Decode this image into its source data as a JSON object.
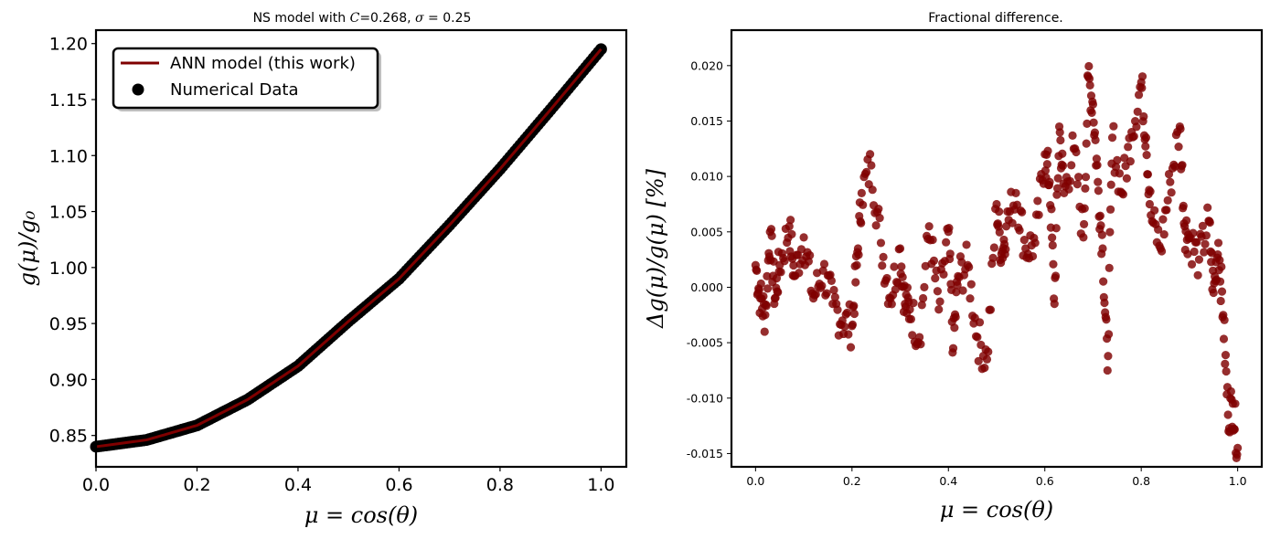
{
  "chart_data": [
    {
      "type": "line",
      "title_pre": "NS model with ",
      "title_c": "C",
      "title_mid": "=0.268, ",
      "title_sigma": "σ",
      "title_post": " = 0.25",
      "xlabel": "μ = cos(θ)",
      "ylabel": "g(μ)/g₀",
      "xlim": [
        0.0,
        1.05
      ],
      "ylim": [
        0.822,
        1.212
      ],
      "xticks": [
        "0.0",
        "0.2",
        "0.4",
        "0.6",
        "0.8",
        "1.0"
      ],
      "yticks": [
        "0.85",
        "0.90",
        "0.95",
        "1.00",
        "1.05",
        "1.10",
        "1.15",
        "1.20"
      ],
      "legend_position": "upper-left",
      "series": [
        {
          "name": "ANN model (this work)",
          "kind": "line",
          "color": "#7f0000",
          "x": [
            0.0,
            0.1,
            0.2,
            0.3,
            0.4,
            0.5,
            0.6,
            0.7,
            0.8,
            0.9,
            1.0
          ],
          "y": [
            0.84,
            0.846,
            0.859,
            0.882,
            0.912,
            0.952,
            0.99,
            1.038,
            1.088,
            1.141,
            1.195
          ]
        },
        {
          "name": "Numerical Data",
          "kind": "scatter",
          "color": "#000000",
          "x": [
            0.0,
            0.1,
            0.2,
            0.3,
            0.4,
            0.5,
            0.6,
            0.7,
            0.8,
            0.9,
            1.0
          ],
          "y": [
            0.84,
            0.846,
            0.859,
            0.882,
            0.912,
            0.952,
            0.99,
            1.038,
            1.088,
            1.141,
            1.195
          ]
        }
      ]
    },
    {
      "type": "scatter",
      "title": "Fractional difference.",
      "xlabel": "μ = cos(θ)",
      "ylabel": "Δg(μ)/g(μ)  [%]",
      "xlim": [
        -0.05,
        1.05
      ],
      "ylim": [
        -0.0162,
        0.0232
      ],
      "xticks": [
        "0.0",
        "0.2",
        "0.4",
        "0.6",
        "0.8",
        "1.0"
      ],
      "yticks": [
        "0.020",
        "0.015",
        "0.010",
        "0.005",
        "0.000",
        "-0.005",
        "-0.010",
        "-0.015"
      ],
      "series": [
        {
          "color": "#7f0000",
          "x": [
            0.0,
            0.01,
            0.02,
            0.03,
            0.04,
            0.05,
            0.07,
            0.08,
            0.1,
            0.12,
            0.14,
            0.16,
            0.18,
            0.2,
            0.21,
            0.22,
            0.24,
            0.26,
            0.28,
            0.3,
            0.31,
            0.32,
            0.34,
            0.36,
            0.38,
            0.4,
            0.41,
            0.42,
            0.44,
            0.46,
            0.48,
            0.5,
            0.51,
            0.52,
            0.54,
            0.56,
            0.58,
            0.6,
            0.61,
            0.62,
            0.63,
            0.64,
            0.66,
            0.68,
            0.69,
            0.7,
            0.71,
            0.72,
            0.73,
            0.74,
            0.76,
            0.78,
            0.8,
            0.81,
            0.82,
            0.84,
            0.86,
            0.88,
            0.89,
            0.9,
            0.92,
            0.94,
            0.95,
            0.96,
            0.97,
            0.98,
            0.99,
            1.0
          ],
          "y": [
            0.002,
            -0.001,
            -0.0025,
            0.005,
            -0.001,
            0.002,
            0.0055,
            0.001,
            0.0045,
            -0.001,
            0.0015,
            -0.0015,
            -0.003,
            -0.0035,
            0.002,
            0.0085,
            0.011,
            0.004,
            -0.001,
            0.0035,
            -0.0015,
            -0.002,
            -0.0045,
            0.0055,
            -0.002,
            0.005,
            -0.0055,
            0.001,
            0.002,
            -0.0045,
            -0.0065,
            0.0075,
            0.003,
            0.0055,
            0.0085,
            0.0035,
            0.004,
            0.012,
            0.0095,
            -0.0015,
            0.0145,
            0.0085,
            0.0125,
            0.0045,
            0.019,
            0.0165,
            0.0095,
            0.0035,
            -0.0075,
            0.0135,
            0.0085,
            0.014,
            0.0185,
            0.0135,
            0.0065,
            0.0035,
            0.0095,
            0.0145,
            0.0055,
            0.0045,
            0.0025,
            0.006,
            -0.0005,
            0.004,
            -0.0025,
            -0.0115,
            -0.0105,
            -0.0145
          ]
        }
      ]
    }
  ]
}
